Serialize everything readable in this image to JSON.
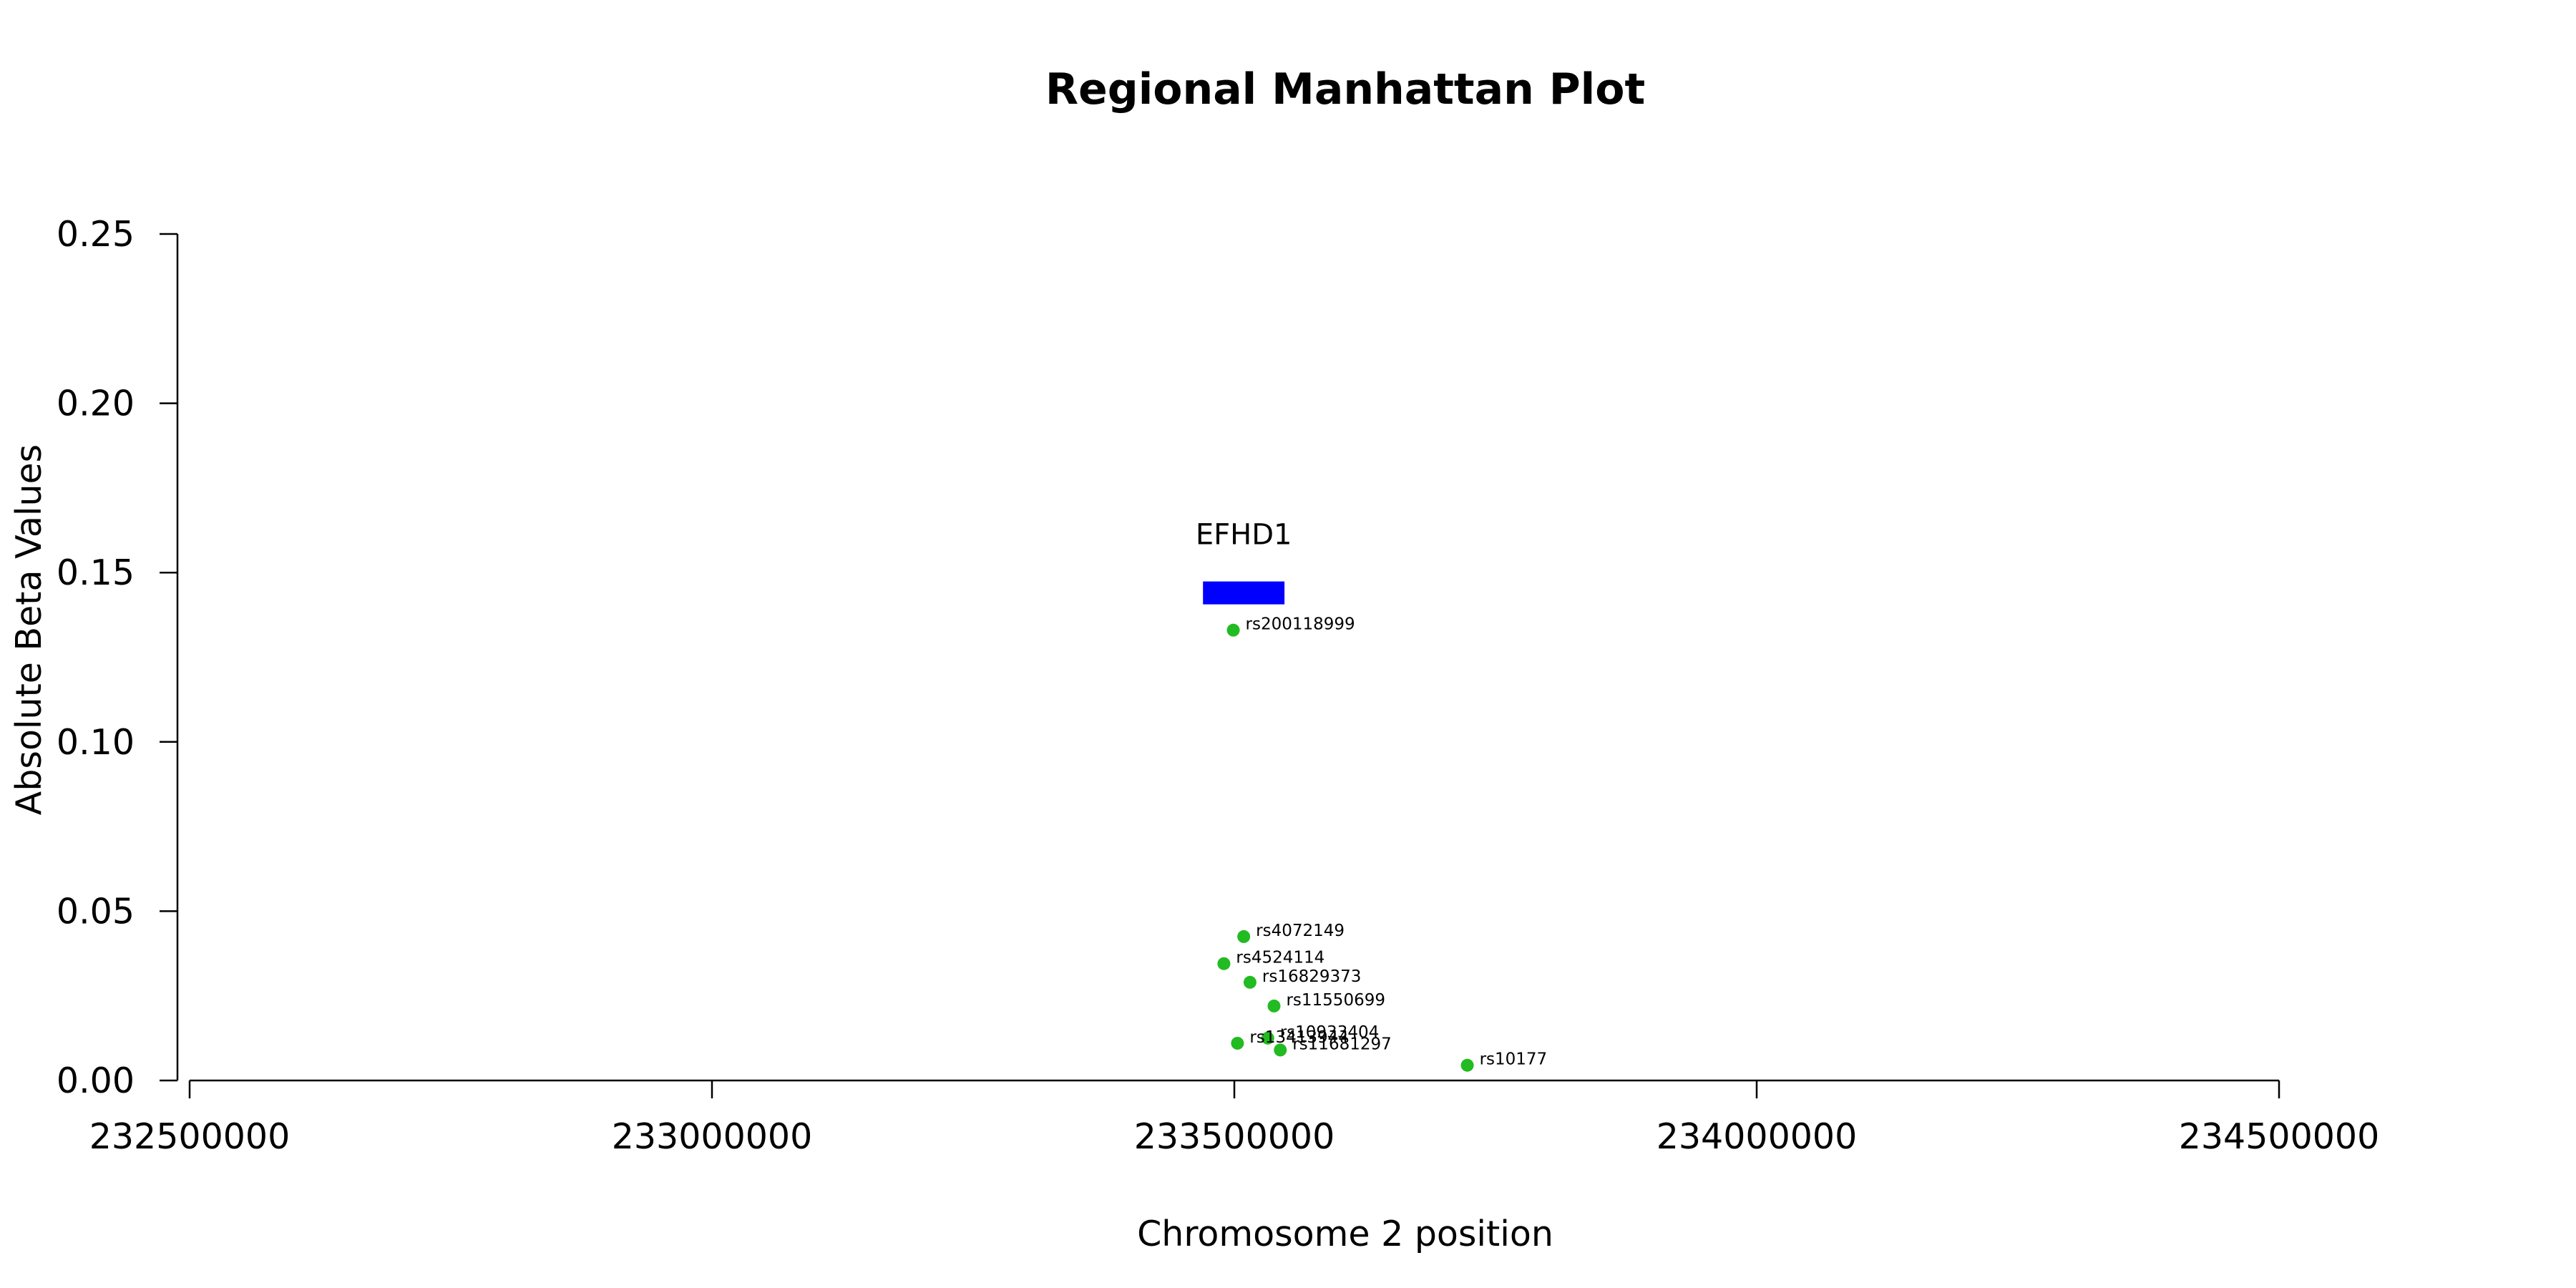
{
  "chart_data": {
    "type": "scatter",
    "title": "Regional Manhattan Plot",
    "xlabel": "Chromosome 2 position",
    "ylabel": "Absolute Beta Values",
    "xlim": [
      232500000,
      234500000
    ],
    "ylim": [
      0,
      0.25
    ],
    "x_ticks": [
      232500000,
      233000000,
      233500000,
      234000000,
      234500000
    ],
    "y_ticks": [
      0.0,
      0.05,
      0.1,
      0.15,
      0.2,
      0.25
    ],
    "x_tick_labels": [
      "232500000",
      "233000000",
      "233500000",
      "234000000",
      "234500000"
    ],
    "y_tick_labels": [
      "0.00",
      "0.05",
      "0.10",
      "0.15",
      "0.20",
      "0.25"
    ],
    "grid": false,
    "point_color": "#22bb22",
    "gene_color": "#0000ff",
    "genes": [
      {
        "name": "EFHD1",
        "start": 233470000,
        "end": 233548000,
        "y": 0.144
      }
    ],
    "points": [
      {
        "name": "rs200118999",
        "x": 233499000,
        "y": 0.133
      },
      {
        "name": "rs4072149",
        "x": 233509000,
        "y": 0.0425
      },
      {
        "name": "rs4524114",
        "x": 233490000,
        "y": 0.0345
      },
      {
        "name": "rs16829373",
        "x": 233515000,
        "y": 0.029
      },
      {
        "name": "rs11550699",
        "x": 233538000,
        "y": 0.022
      },
      {
        "name": "rs10933404",
        "x": 233532000,
        "y": 0.0125
      },
      {
        "name": "rs13413944",
        "x": 233503000,
        "y": 0.011
      },
      {
        "name": "rs11681297",
        "x": 233544000,
        "y": 0.009
      },
      {
        "name": "rs10177",
        "x": 233723000,
        "y": 0.0045
      }
    ]
  }
}
